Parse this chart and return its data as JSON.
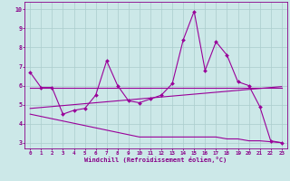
{
  "xlabel": "Windchill (Refroidissement éolien,°C)",
  "x": [
    0,
    1,
    2,
    3,
    4,
    5,
    6,
    7,
    8,
    9,
    10,
    11,
    12,
    13,
    14,
    15,
    16,
    17,
    18,
    19,
    20,
    21,
    22,
    23
  ],
  "line1": [
    6.7,
    5.9,
    5.9,
    4.5,
    4.7,
    4.8,
    5.5,
    7.3,
    6.0,
    5.2,
    5.1,
    5.3,
    5.5,
    6.1,
    8.4,
    9.9,
    6.8,
    8.3,
    7.6,
    6.2,
    6.0,
    4.9,
    3.1,
    3.0
  ],
  "line2": [
    5.9,
    5.9,
    5.9,
    5.9,
    5.9,
    5.9,
    5.9,
    5.9,
    5.9,
    5.9,
    5.9,
    5.9,
    5.9,
    5.9,
    5.9,
    5.9,
    5.9,
    5.9,
    5.9,
    5.9,
    5.9,
    5.9,
    5.9,
    5.9
  ],
  "line3": [
    4.8,
    4.85,
    4.9,
    4.95,
    5.0,
    5.05,
    5.1,
    5.15,
    5.2,
    5.25,
    5.3,
    5.35,
    5.4,
    5.45,
    5.5,
    5.55,
    5.6,
    5.65,
    5.7,
    5.75,
    5.8,
    5.85,
    5.9,
    5.95
  ],
  "line4": [
    4.5,
    4.38,
    4.26,
    4.14,
    4.02,
    3.9,
    3.78,
    3.66,
    3.54,
    3.42,
    3.3,
    3.3,
    3.3,
    3.3,
    3.3,
    3.3,
    3.3,
    3.3,
    3.2,
    3.2,
    3.1,
    3.1,
    3.05,
    3.0
  ],
  "line_color": "#990099",
  "bg_color": "#cce8e8",
  "grid_color": "#aacccc",
  "text_color": "#880088",
  "xlim": [
    -0.5,
    23.5
  ],
  "ylim": [
    2.7,
    10.4
  ],
  "yticks": [
    3,
    4,
    5,
    6,
    7,
    8,
    9,
    10
  ],
  "xticks": [
    0,
    1,
    2,
    3,
    4,
    5,
    6,
    7,
    8,
    9,
    10,
    11,
    12,
    13,
    14,
    15,
    16,
    17,
    18,
    19,
    20,
    21,
    22,
    23
  ]
}
